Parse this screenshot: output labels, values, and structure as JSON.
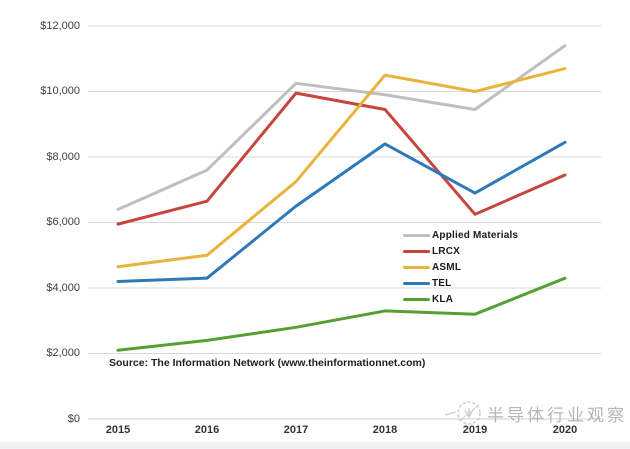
{
  "chart_data": {
    "type": "line",
    "title": "",
    "xlabel": "",
    "ylabel": "",
    "x_labels": [
      "2015",
      "2016",
      "2017",
      "2018",
      "2019",
      "2020"
    ],
    "ytick_labels": [
      "$12,000",
      "$10,000",
      "$8,000",
      "$6,000",
      "$4,000",
      "$2,000",
      "$0"
    ],
    "yticks": [
      12000,
      10000,
      8000,
      6000,
      4000,
      2000,
      0
    ],
    "ylim": [
      0,
      12000
    ],
    "grid": "horizontal",
    "gridline_color": "#D9D9D9",
    "legend_position": "middle-right",
    "series": [
      {
        "name": "Applied Materials",
        "color": "#BFBFBF",
        "values": [
          6400,
          7600,
          10250,
          9900,
          9450,
          11400
        ]
      },
      {
        "name": "LRCX",
        "color": "#C5463C",
        "values": [
          5950,
          6650,
          9950,
          9450,
          6250,
          7450
        ]
      },
      {
        "name": "ASML",
        "color": "#E9B43C",
        "values": [
          4650,
          5000,
          7250,
          10500,
          10000,
          10700
        ]
      },
      {
        "name": "TEL",
        "color": "#2E79B8",
        "values": [
          4200,
          4300,
          6500,
          8400,
          6900,
          8450
        ]
      },
      {
        "name": "KLA",
        "color": "#56A031",
        "values": [
          2100,
          2400,
          2800,
          3300,
          3200,
          4300
        ]
      }
    ],
    "source_note": "Source: The Information Network (www.theinformationnet.com)"
  },
  "watermark": {
    "text": "半导体行业观察",
    "icon": "seal-logo-icon",
    "color": "#9B9B9B"
  }
}
